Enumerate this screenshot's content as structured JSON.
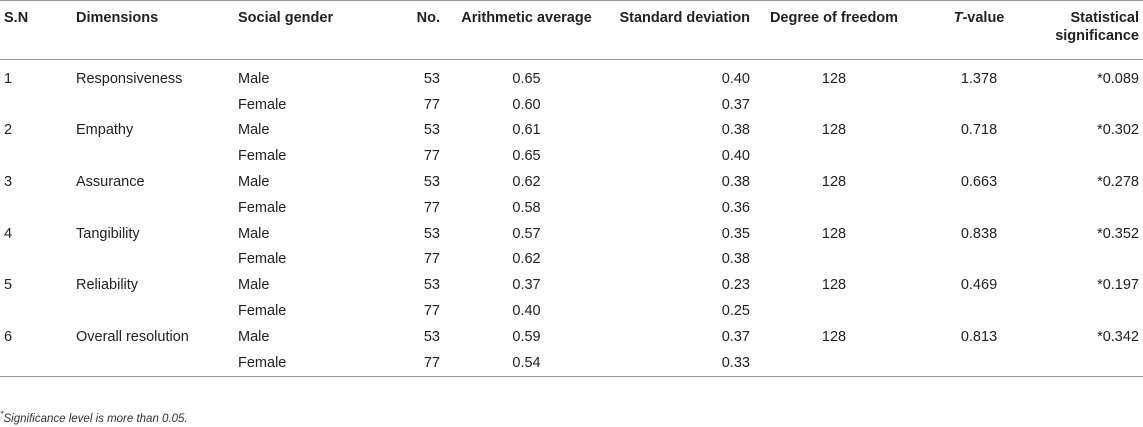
{
  "headers": {
    "sn": "S.N",
    "dimensions": "Dimensions",
    "social_gender": "Social gender",
    "no": "No.",
    "arithmetic_average": "Arithmetic average",
    "standard_deviation": "Standard deviation",
    "degree_of_freedom": "Degree of freedom",
    "t_value_prefix": "T",
    "t_value_suffix": "-value",
    "statistical_significance": "Statistical significance"
  },
  "rows": [
    {
      "sn": "1",
      "dimension": "Responsiveness",
      "df": "128",
      "t": "1.378",
      "sig": "*0.089",
      "male": {
        "gender": "Male",
        "no": "53",
        "avg": "0.65",
        "sd": "0.40"
      },
      "female": {
        "gender": "Female",
        "no": "77",
        "avg": "0.60",
        "sd": "0.37"
      }
    },
    {
      "sn": "2",
      "dimension": "Empathy",
      "df": "128",
      "t": "0.718",
      "sig": "*0.302",
      "male": {
        "gender": "Male",
        "no": "53",
        "avg": "0.61",
        "sd": "0.38"
      },
      "female": {
        "gender": "Female",
        "no": "77",
        "avg": "0.65",
        "sd": "0.40"
      }
    },
    {
      "sn": "3",
      "dimension": "Assurance",
      "df": "128",
      "t": "0.663",
      "sig": "*0.278",
      "male": {
        "gender": "Male",
        "no": "53",
        "avg": "0.62",
        "sd": "0.38"
      },
      "female": {
        "gender": "Female",
        "no": "77",
        "avg": "0.58",
        "sd": "0.36"
      }
    },
    {
      "sn": "4",
      "dimension": "Tangibility",
      "df": "128",
      "t": "0.838",
      "sig": "*0.352",
      "male": {
        "gender": "Male",
        "no": "53",
        "avg": "0.57",
        "sd": "0.35"
      },
      "female": {
        "gender": "Female",
        "no": "77",
        "avg": "0.62",
        "sd": "0.38"
      }
    },
    {
      "sn": "5",
      "dimension": "Reliability",
      "df": "128",
      "t": "0.469",
      "sig": "*0.197",
      "male": {
        "gender": "Male",
        "no": "53",
        "avg": "0.37",
        "sd": "0.23"
      },
      "female": {
        "gender": "Female",
        "no": "77",
        "avg": "0.40",
        "sd": "0.25"
      }
    },
    {
      "sn": "6",
      "dimension": "Overall resolution",
      "df": "128",
      "t": "0.813",
      "sig": "*0.342",
      "male": {
        "gender": "Male",
        "no": "53",
        "avg": "0.59",
        "sd": "0.37"
      },
      "female": {
        "gender": "Female",
        "no": "77",
        "avg": "0.54",
        "sd": "0.33"
      }
    }
  ],
  "footnote": {
    "mark": "*",
    "text": "Significance level is more than 0.05."
  }
}
